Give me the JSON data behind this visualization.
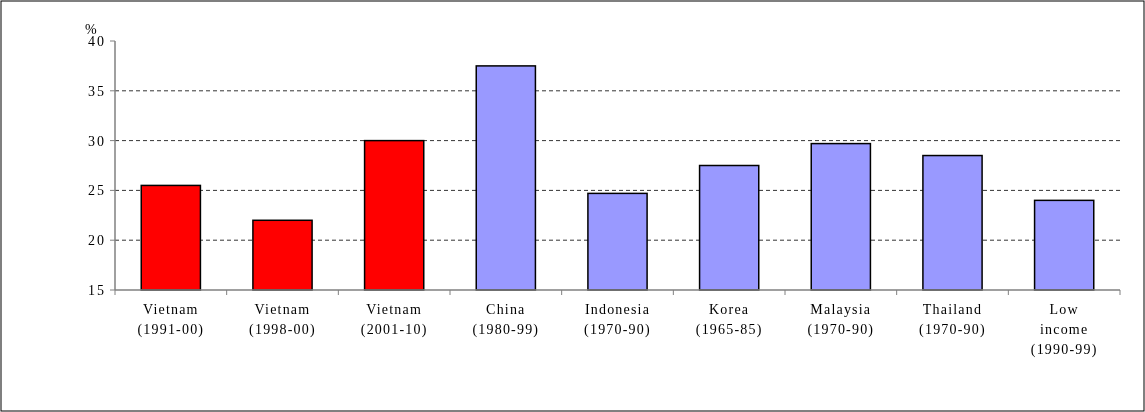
{
  "chart_data": {
    "type": "bar",
    "ylabel": "%",
    "categories": [
      "Vietnam\n(1991-00)",
      "Vietnam\n(1998-00)",
      "Vietnam\n(2001-10)",
      "China\n(1980-99)",
      "Indonesia\n(1970-90)",
      "Korea\n(1965-85)",
      "Malaysia\n(1970-90)",
      "Thailand\n(1970-90)",
      "Low\nincome\n(1990-99)"
    ],
    "values": [
      25.5,
      22,
      30,
      37.5,
      24.7,
      27.5,
      29.7,
      28.5,
      24
    ],
    "colors": [
      "#ff0000",
      "#ff0000",
      "#ff0000",
      "#9999ff",
      "#9999ff",
      "#9999ff",
      "#9999ff",
      "#9999ff",
      "#9999ff"
    ],
    "ylim": [
      15,
      40
    ],
    "yticks": [
      15,
      20,
      25,
      30,
      35,
      40
    ],
    "grid": "y"
  }
}
